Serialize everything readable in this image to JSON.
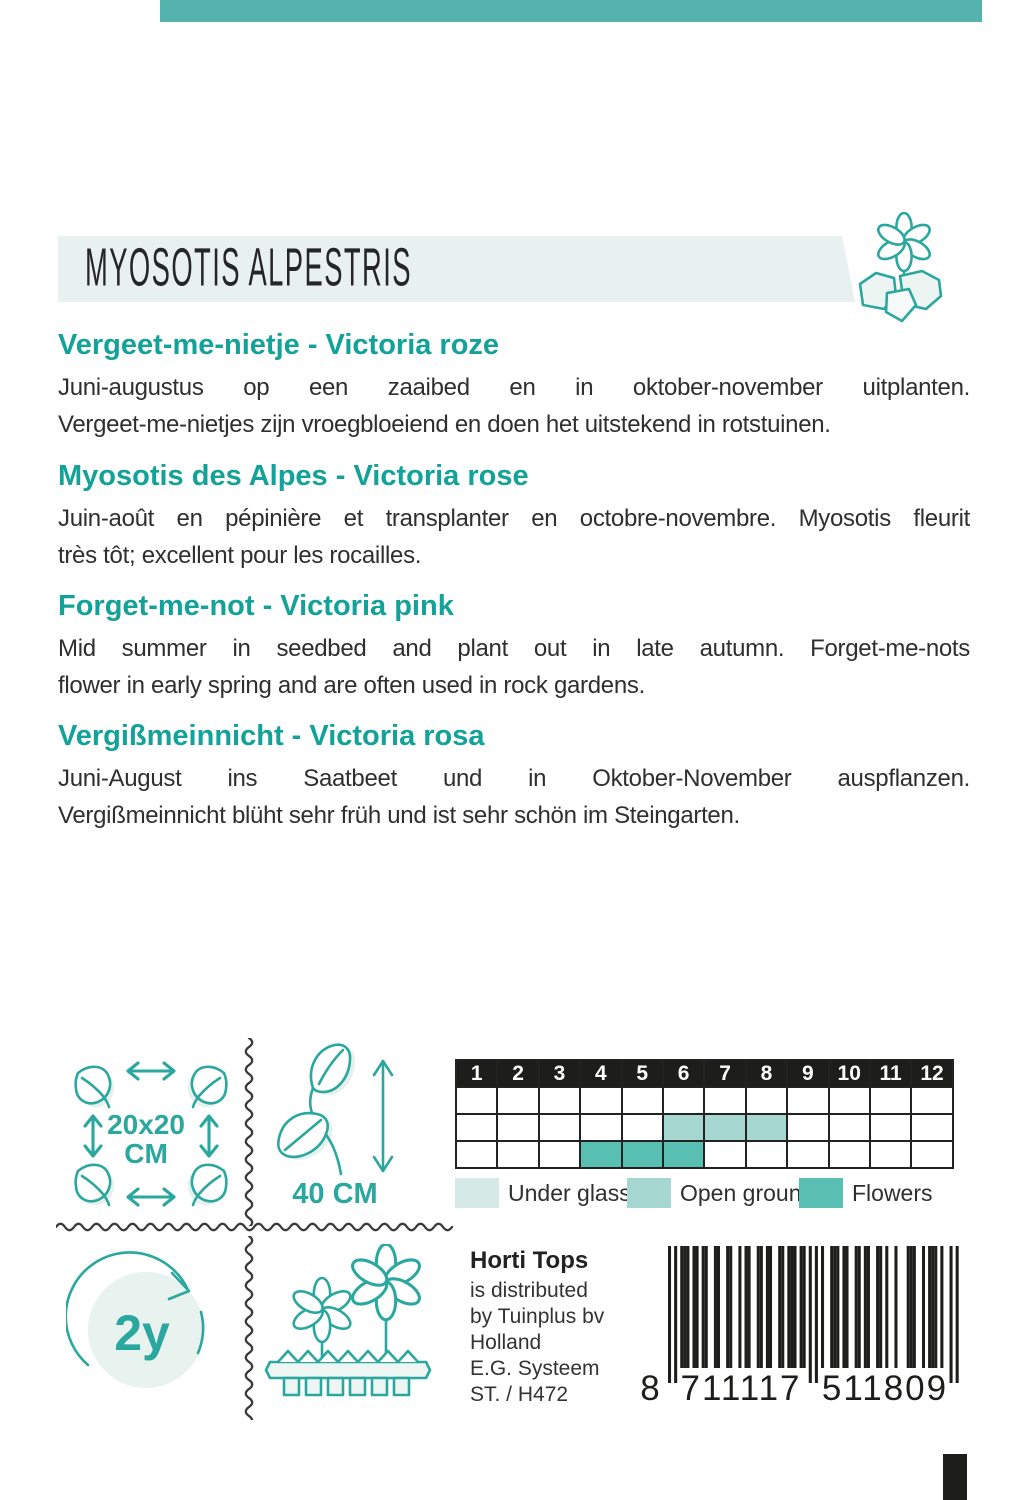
{
  "title": "MYOSOTIS ALPESTRIS",
  "sections": [
    {
      "lang": "nl",
      "heading": "Vergeet-me-nietje - Victoria roze",
      "lines": [
        "Juni-augustus op een zaaibed en in oktober-november uitplanten.",
        "Vergeet-me-nietjes zijn vroegbloeiend en doen het uitstekend in rotstuinen."
      ]
    },
    {
      "lang": "fr",
      "heading": "Myosotis des Alpes - Victoria rose",
      "lines": [
        "Juin-août en pépinière et transplanter en octobre-novembre. Myosotis fleurit",
        "très tôt; excellent pour les rocailles."
      ]
    },
    {
      "lang": "en",
      "heading": "Forget-me-not - Victoria pink",
      "lines": [
        "Mid summer in seedbed and plant out in late autumn. Forget-me-nots",
        "flower in early spring and are often used in rock gardens."
      ]
    },
    {
      "lang": "de",
      "heading": "Vergißmeinnicht - Victoria rosa",
      "lines": [
        "Juni-August ins Saatbeet und in Oktober-November auspflanzen.",
        "Vergißmeinnicht blüht sehr früh und ist sehr schön im Steingarten."
      ]
    }
  ],
  "icons": {
    "spacing_line1": "20x20",
    "spacing_line2": "CM",
    "height_label": "40 CM",
    "lifecycle_label": "2y"
  },
  "calendar": {
    "months": [
      "1",
      "2",
      "3",
      "4",
      "5",
      "6",
      "7",
      "8",
      "9",
      "10",
      "11",
      "12"
    ],
    "rows": [
      {
        "name": "under-glass",
        "filled_months": [],
        "fill": "#d5eae6"
      },
      {
        "name": "open-ground",
        "filled_months": [
          6,
          7,
          8
        ],
        "fill": "#a5d7d0"
      },
      {
        "name": "flowers",
        "filled_months": [
          4,
          5,
          6
        ],
        "fill": "#58bfb2"
      }
    ],
    "legend": [
      {
        "label": "Under glass",
        "color": "#d5eae6"
      },
      {
        "label": "Open ground",
        "color": "#a5d7d0"
      },
      {
        "label": "Flowers",
        "color": "#58bfb2"
      }
    ]
  },
  "distributor": {
    "name": "Horti Tops",
    "lines": [
      "is distributed",
      "by Tuinplus bv",
      "Holland",
      "E.G. Systeem",
      "ST. / H472"
    ]
  },
  "barcode": {
    "value": "8711117511809",
    "display": [
      "8",
      "711117",
      "511809"
    ]
  },
  "colors": {
    "top_bar": "#55b2ac",
    "banner_bg": "#e8f1ef",
    "heading": "#13a29a",
    "accent": "#2aa79e",
    "text": "#2f2f2f",
    "calendar_black": "#1d1d1b"
  }
}
